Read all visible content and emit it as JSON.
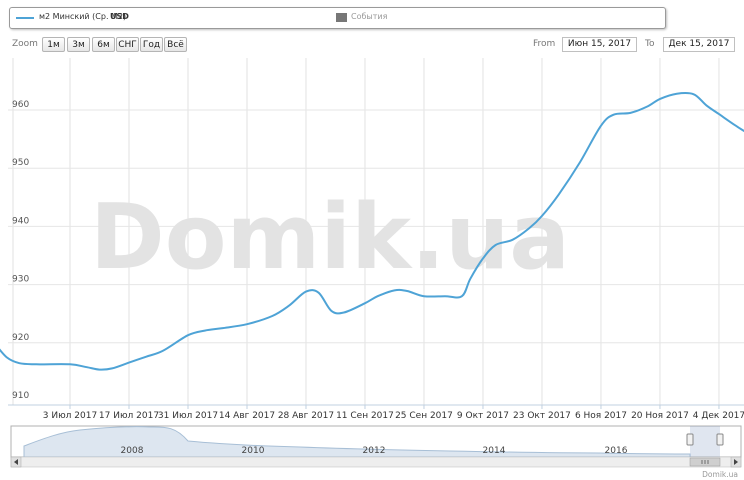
{
  "legend": {
    "series_name": "м2 Минский (Ср. М2)",
    "unit": "USD",
    "events_label": "События",
    "series_color": "#4ea3d6",
    "events_color": "#777777"
  },
  "zoom": {
    "label": "Zoom",
    "buttons": [
      "1м",
      "3м",
      "6м",
      "СНГ",
      "Год",
      "Всё"
    ]
  },
  "range": {
    "from_label": "From",
    "from_value": "Июн 15, 2017",
    "to_label": "To",
    "to_value": "Дек 15, 2017"
  },
  "watermark": "Domik.ua",
  "credit": "Domik.ua",
  "navigator": {
    "year_labels": [
      "2008",
      "2010",
      "2012",
      "2014",
      "2016"
    ],
    "scroll_icons": [
      "scroll-left-arrow-icon",
      "scroll-right-arrow-icon",
      "scrollbar-grip-icon"
    ]
  },
  "chart_data": {
    "type": "line",
    "title": "",
    "xlabel": "",
    "ylabel": "",
    "ylim": [
      910,
      965
    ],
    "y_ticks": [
      910,
      920,
      930,
      940,
      950,
      960
    ],
    "x_range": [
      "2017-06-15",
      "2017-12-15"
    ],
    "x_tick_labels": [
      "3 Июл 2017",
      "17 Июл 2017",
      "31 Июл 2017",
      "14 Авг 2017",
      "28 Авг 2017",
      "11 Сен 2017",
      "25 Сен 2017",
      "9 Окт 2017",
      "23 Окт 2017",
      "6 Ноя 2017",
      "20 Ноя 2017",
      "4 Дек 2017"
    ],
    "x_tick_dates": [
      "2017-07-03",
      "2017-07-17",
      "2017-07-31",
      "2017-08-14",
      "2017-08-28",
      "2017-09-11",
      "2017-09-25",
      "2017-10-09",
      "2017-10-23",
      "2017-11-06",
      "2017-11-20",
      "2017-12-04"
    ],
    "grid": true,
    "series": [
      {
        "name": "м2 Минский (Ср. М2)",
        "color": "#4ea3d6",
        "points": [
          [
            "2017-06-15",
            920.0
          ],
          [
            "2017-06-18",
            917.5
          ],
          [
            "2017-06-21",
            916.5
          ],
          [
            "2017-06-25",
            916.3
          ],
          [
            "2017-07-03",
            916.3
          ],
          [
            "2017-07-07",
            915.8
          ],
          [
            "2017-07-10",
            915.4
          ],
          [
            "2017-07-13",
            915.6
          ],
          [
            "2017-07-17",
            916.6
          ],
          [
            "2017-07-21",
            917.6
          ],
          [
            "2017-07-25",
            918.6
          ],
          [
            "2017-07-31",
            921.3
          ],
          [
            "2017-08-04",
            922.1
          ],
          [
            "2017-08-08",
            922.5
          ],
          [
            "2017-08-14",
            923.2
          ],
          [
            "2017-08-20",
            924.6
          ],
          [
            "2017-08-24",
            926.4
          ],
          [
            "2017-08-28",
            928.8
          ],
          [
            "2017-08-31",
            928.6
          ],
          [
            "2017-09-03",
            925.5
          ],
          [
            "2017-09-06",
            925.2
          ],
          [
            "2017-09-11",
            926.8
          ],
          [
            "2017-09-14",
            928.0
          ],
          [
            "2017-09-18",
            929.0
          ],
          [
            "2017-09-21",
            928.9
          ],
          [
            "2017-09-25",
            928.0
          ],
          [
            "2017-09-30",
            928.0
          ],
          [
            "2017-10-04",
            928.0
          ],
          [
            "2017-10-06",
            931.0
          ],
          [
            "2017-10-09",
            934.5
          ],
          [
            "2017-10-12",
            936.8
          ],
          [
            "2017-10-16",
            937.7
          ],
          [
            "2017-10-20",
            939.7
          ],
          [
            "2017-10-23",
            941.8
          ],
          [
            "2017-10-27",
            945.5
          ],
          [
            "2017-11-01",
            951.0
          ],
          [
            "2017-11-06",
            957.3
          ],
          [
            "2017-11-09",
            959.2
          ],
          [
            "2017-11-13",
            959.5
          ],
          [
            "2017-11-17",
            960.6
          ],
          [
            "2017-11-20",
            961.9
          ],
          [
            "2017-11-24",
            962.8
          ],
          [
            "2017-11-28",
            962.7
          ],
          [
            "2017-12-01",
            960.8
          ],
          [
            "2017-12-04",
            959.3
          ],
          [
            "2017-12-08",
            957.3
          ],
          [
            "2017-12-11",
            956.0
          ],
          [
            "2017-12-15",
            955.0
          ]
        ]
      }
    ]
  }
}
